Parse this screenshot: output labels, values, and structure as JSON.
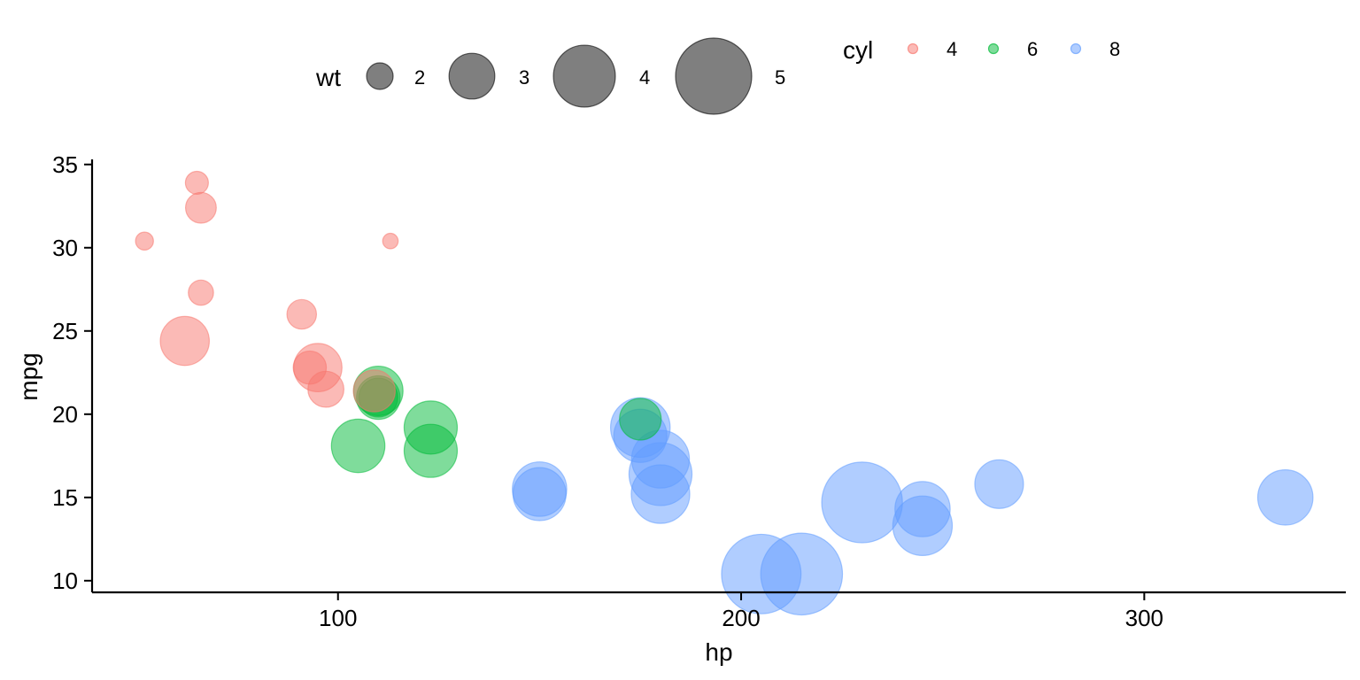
{
  "chart_data": {
    "type": "scatter",
    "xlabel": "hp",
    "ylabel": "mpg",
    "xlim": [
      39,
      350
    ],
    "ylim": [
      9.3,
      35.2
    ],
    "x_ticks": [
      100,
      200,
      300
    ],
    "y_ticks": [
      10,
      15,
      20,
      25,
      30,
      35
    ],
    "grid": false,
    "legend_position": "top",
    "size_legend": {
      "title": "wt",
      "entries": [
        2,
        3,
        4,
        5
      ]
    },
    "color_legend": {
      "title": "cyl",
      "entries": [
        {
          "label": "4",
          "color": "#F8766D"
        },
        {
          "label": "6",
          "color": "#00BA38"
        },
        {
          "label": "8",
          "color": "#619CFF"
        }
      ]
    },
    "points": [
      {
        "x": 110,
        "y": 21.0,
        "wt": 2.62,
        "cyl": "6"
      },
      {
        "x": 110,
        "y": 21.0,
        "wt": 2.875,
        "cyl": "6"
      },
      {
        "x": 93,
        "y": 22.8,
        "wt": 2.32,
        "cyl": "4"
      },
      {
        "x": 110,
        "y": 21.4,
        "wt": 3.215,
        "cyl": "6"
      },
      {
        "x": 175,
        "y": 18.7,
        "wt": 3.44,
        "cyl": "8"
      },
      {
        "x": 105,
        "y": 18.1,
        "wt": 3.46,
        "cyl": "6"
      },
      {
        "x": 245,
        "y": 14.3,
        "wt": 3.57,
        "cyl": "8"
      },
      {
        "x": 62,
        "y": 24.4,
        "wt": 3.19,
        "cyl": "4"
      },
      {
        "x": 95,
        "y": 22.8,
        "wt": 3.15,
        "cyl": "4"
      },
      {
        "x": 123,
        "y": 19.2,
        "wt": 3.44,
        "cyl": "6"
      },
      {
        "x": 123,
        "y": 17.8,
        "wt": 3.44,
        "cyl": "6"
      },
      {
        "x": 180,
        "y": 16.4,
        "wt": 4.07,
        "cyl": "8"
      },
      {
        "x": 180,
        "y": 17.3,
        "wt": 3.73,
        "cyl": "8"
      },
      {
        "x": 180,
        "y": 15.2,
        "wt": 3.78,
        "cyl": "8"
      },
      {
        "x": 205,
        "y": 10.4,
        "wt": 5.25,
        "cyl": "8"
      },
      {
        "x": 215,
        "y": 10.4,
        "wt": 5.424,
        "cyl": "8"
      },
      {
        "x": 230,
        "y": 14.7,
        "wt": 5.345,
        "cyl": "8"
      },
      {
        "x": 66,
        "y": 32.4,
        "wt": 2.2,
        "cyl": "4"
      },
      {
        "x": 52,
        "y": 30.4,
        "wt": 1.615,
        "cyl": "4"
      },
      {
        "x": 65,
        "y": 33.9,
        "wt": 1.835,
        "cyl": "4"
      },
      {
        "x": 97,
        "y": 21.5,
        "wt": 2.465,
        "cyl": "4"
      },
      {
        "x": 150,
        "y": 15.5,
        "wt": 3.52,
        "cyl": "8"
      },
      {
        "x": 150,
        "y": 15.2,
        "wt": 3.435,
        "cyl": "8"
      },
      {
        "x": 245,
        "y": 13.3,
        "wt": 3.84,
        "cyl": "8"
      },
      {
        "x": 175,
        "y": 19.2,
        "wt": 3.845,
        "cyl": "8"
      },
      {
        "x": 66,
        "y": 27.3,
        "wt": 1.935,
        "cyl": "4"
      },
      {
        "x": 91,
        "y": 26.0,
        "wt": 2.14,
        "cyl": "4"
      },
      {
        "x": 113,
        "y": 30.4,
        "wt": 1.513,
        "cyl": "4"
      },
      {
        "x": 264,
        "y": 15.8,
        "wt": 3.17,
        "cyl": "8"
      },
      {
        "x": 175,
        "y": 19.7,
        "wt": 2.77,
        "cyl": "6"
      },
      {
        "x": 335,
        "y": 15.0,
        "wt": 3.57,
        "cyl": "8"
      },
      {
        "x": 109,
        "y": 21.4,
        "wt": 2.78,
        "cyl": "4"
      }
    ]
  }
}
